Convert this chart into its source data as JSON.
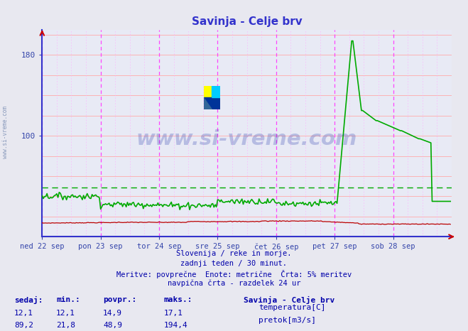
{
  "title": "Savinja - Celje brv",
  "title_color": "#3333cc",
  "bg_color": "#e8e8f0",
  "plot_bg_color": "#e8eaf5",
  "x_labels": [
    "ned 22 sep",
    "pon 23 sep",
    "tor 24 sep",
    "sre 25 sep",
    "čet 26 sep",
    "pet 27 sep",
    "sob 28 sep"
  ],
  "x_tick_positions": [
    0,
    48,
    96,
    144,
    192,
    240,
    288
  ],
  "total_points": 336,
  "y_min": 0,
  "y_max": 200,
  "y_ticks": [
    100,
    180
  ],
  "y_grid_vals": [
    20,
    40,
    60,
    80,
    100,
    120,
    140,
    160,
    180,
    200
  ],
  "grid_color_h": "#ffaaaa",
  "grid_color_v_major": "#ff44ff",
  "grid_color_v_minor": "#ffaaff",
  "dashed_line_color": "#00aa00",
  "dashed_line_y": 48.9,
  "footer_lines": [
    "Slovenija / reke in morje.",
    "zadnji teden / 30 minut.",
    "Meritve: povprečne  Enote: metrične  Črta: 5% meritev",
    "navpična črta - razdelek 24 ur"
  ],
  "footer_color": "#0000aa",
  "watermark": "www.si-vreme.com",
  "watermark_color": "#2233aa",
  "watermark_alpha": 0.25,
  "sidebar_text": "www.si-vreme.com",
  "sidebar_color": "#8899bb",
  "legend_title": "Savinja - Celje brv",
  "legend_items": [
    {
      "label": "temperatura[C]",
      "color": "#cc0000"
    },
    {
      "label": "pretok[m3/s]",
      "color": "#00bb00"
    }
  ],
  "stats_headers": [
    "sedaj:",
    "min.:",
    "povpr.:",
    "maks.:"
  ],
  "stats_row1": [
    12.1,
    12.1,
    14.9,
    17.1
  ],
  "stats_row2": [
    89.2,
    21.8,
    48.9,
    194.4
  ],
  "temp_color": "#bb0000",
  "flow_color": "#00aa00",
  "spine_color": "#3333cc",
  "tick_color": "#3344aa",
  "arrow_color": "#cc0000"
}
